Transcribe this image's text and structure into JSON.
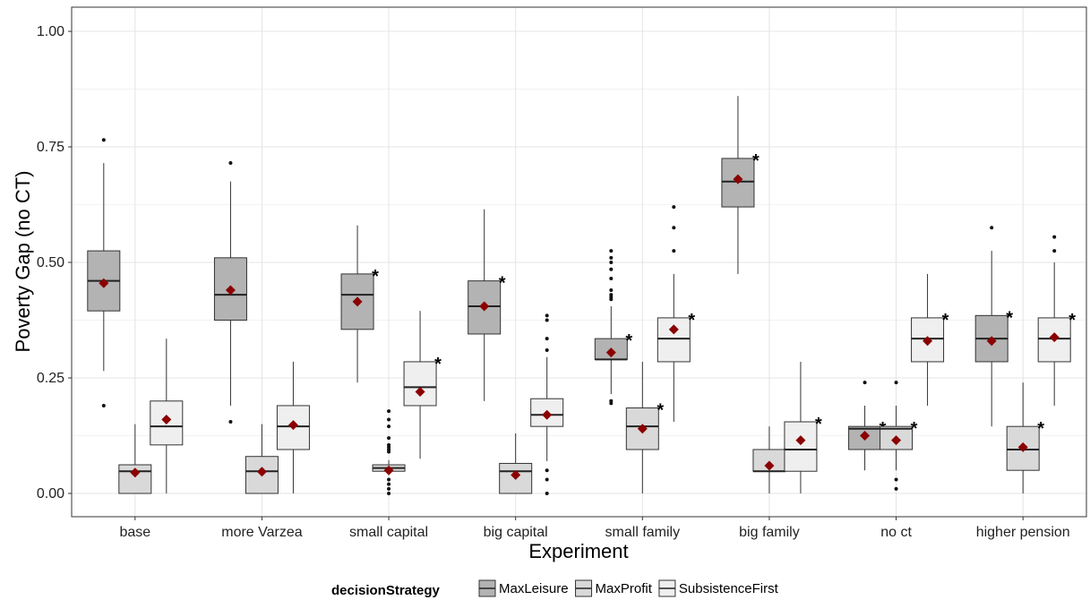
{
  "chart_data": {
    "type": "boxplot",
    "xlabel": "Experiment",
    "ylabel": "Poverty Gap (no CT)",
    "ylim": [
      -0.05,
      1.05
    ],
    "yticks": [
      0.0,
      0.25,
      0.5,
      0.75,
      1.0
    ],
    "ytick_labels": [
      "0.00",
      "0.25",
      "0.50",
      "0.75",
      "1.00"
    ],
    "grid": true,
    "legend": {
      "title": "decisionStrategy",
      "placement": "bottom",
      "entries": [
        {
          "name": "MaxLeisure",
          "color": "#b3b3b3"
        },
        {
          "name": "MaxProfit",
          "color": "#d9d9d9"
        },
        {
          "name": "SubsistenceFirst",
          "color": "#efefef"
        }
      ]
    },
    "mean_marker_color": "#8b0000",
    "significance_marker": "*",
    "categories": [
      "base",
      "more Varzea",
      "small capital",
      "big capital",
      "small family",
      "big family",
      "no ct",
      "higher pension"
    ],
    "series": [
      {
        "name": "MaxLeisure",
        "boxes": [
          {
            "q1": 0.395,
            "median": 0.46,
            "q3": 0.525,
            "whisker_low": 0.265,
            "whisker_high": 0.715,
            "mean": 0.455,
            "outliers": [
              0.765,
              0.19
            ],
            "significant": false
          },
          {
            "q1": 0.375,
            "median": 0.43,
            "q3": 0.51,
            "whisker_low": 0.19,
            "whisker_high": 0.675,
            "mean": 0.44,
            "outliers": [
              0.715,
              0.155
            ],
            "significant": false
          },
          {
            "q1": 0.355,
            "median": 0.43,
            "q3": 0.475,
            "whisker_low": 0.24,
            "whisker_high": 0.58,
            "mean": 0.415,
            "outliers": [],
            "significant": true
          },
          {
            "q1": 0.345,
            "median": 0.405,
            "q3": 0.46,
            "whisker_low": 0.2,
            "whisker_high": 0.615,
            "mean": 0.405,
            "outliers": [],
            "significant": true
          },
          {
            "q1": 0.29,
            "median": 0.29,
            "q3": 0.335,
            "whisker_low": 0.215,
            "whisker_high": 0.405,
            "mean": 0.305,
            "outliers": [
              0.525,
              0.51,
              0.5,
              0.485,
              0.465,
              0.44,
              0.43,
              0.425,
              0.42,
              0.2,
              0.195
            ],
            "significant": true
          },
          {
            "q1": 0.62,
            "median": 0.675,
            "q3": 0.725,
            "whisker_low": 0.475,
            "whisker_high": 0.86,
            "mean": 0.68,
            "outliers": [],
            "significant": true
          },
          {
            "q1": 0.095,
            "median": 0.14,
            "q3": 0.145,
            "whisker_low": 0.05,
            "whisker_high": 0.19,
            "mean": 0.125,
            "outliers": [
              0.24
            ],
            "significant": true
          },
          {
            "q1": 0.285,
            "median": 0.335,
            "q3": 0.385,
            "whisker_low": 0.145,
            "whisker_high": 0.525,
            "mean": 0.33,
            "outliers": [
              0.575
            ],
            "significant": true
          }
        ]
      },
      {
        "name": "MaxProfit",
        "boxes": [
          {
            "q1": 0.0,
            "median": 0.048,
            "q3": 0.062,
            "whisker_low": 0.0,
            "whisker_high": 0.15,
            "mean": 0.045,
            "outliers": [],
            "significant": false
          },
          {
            "q1": 0.0,
            "median": 0.048,
            "q3": 0.08,
            "whisker_low": 0.0,
            "whisker_high": 0.15,
            "mean": 0.047,
            "outliers": [],
            "significant": false
          },
          {
            "q1": 0.048,
            "median": 0.055,
            "q3": 0.062,
            "whisker_low": 0.04,
            "whisker_high": 0.072,
            "mean": 0.05,
            "outliers": [
              0.178,
              0.16,
              0.145,
              0.12,
              0.105,
              0.1,
              0.095,
              0.09,
              0.03,
              0.02,
              0.01,
              0.0
            ],
            "significant": false
          },
          {
            "q1": 0.0,
            "median": 0.048,
            "q3": 0.065,
            "whisker_low": 0.0,
            "whisker_high": 0.13,
            "mean": 0.04,
            "outliers": [],
            "significant": false
          },
          {
            "q1": 0.095,
            "median": 0.145,
            "q3": 0.185,
            "whisker_low": 0.0,
            "whisker_high": 0.285,
            "mean": 0.14,
            "outliers": [],
            "significant": true
          },
          {
            "q1": 0.048,
            "median": 0.048,
            "q3": 0.095,
            "whisker_low": 0.0,
            "whisker_high": 0.145,
            "mean": 0.06,
            "outliers": [],
            "significant": true
          },
          {
            "q1": 0.095,
            "median": 0.14,
            "q3": 0.145,
            "whisker_low": 0.05,
            "whisker_high": 0.19,
            "mean": 0.115,
            "outliers": [
              0.24,
              0.03,
              0.01
            ],
            "significant": true
          },
          {
            "q1": 0.05,
            "median": 0.095,
            "q3": 0.145,
            "whisker_low": 0.0,
            "whisker_high": 0.24,
            "mean": 0.1,
            "outliers": [],
            "significant": true
          }
        ]
      },
      {
        "name": "SubsistenceFirst",
        "boxes": [
          {
            "q1": 0.105,
            "median": 0.145,
            "q3": 0.2,
            "whisker_low": 0.0,
            "whisker_high": 0.335,
            "mean": 0.16,
            "outliers": [],
            "significant": false
          },
          {
            "q1": 0.095,
            "median": 0.145,
            "q3": 0.19,
            "whisker_low": 0.0,
            "whisker_high": 0.285,
            "mean": 0.148,
            "outliers": [],
            "significant": false
          },
          {
            "q1": 0.19,
            "median": 0.23,
            "q3": 0.285,
            "whisker_low": 0.075,
            "whisker_high": 0.395,
            "mean": 0.22,
            "outliers": [],
            "significant": true
          },
          {
            "q1": 0.145,
            "median": 0.17,
            "q3": 0.205,
            "whisker_low": 0.07,
            "whisker_high": 0.295,
            "mean": 0.17,
            "outliers": [
              0.385,
              0.375,
              0.335,
              0.31,
              0.05,
              0.03,
              0.0
            ],
            "significant": false
          },
          {
            "q1": 0.285,
            "median": 0.335,
            "q3": 0.38,
            "whisker_low": 0.155,
            "whisker_high": 0.475,
            "mean": 0.355,
            "outliers": [
              0.62,
              0.575,
              0.525
            ],
            "significant": true
          },
          {
            "q1": 0.048,
            "median": 0.095,
            "q3": 0.155,
            "whisker_low": 0.0,
            "whisker_high": 0.285,
            "mean": 0.115,
            "outliers": [],
            "significant": true
          },
          {
            "q1": 0.285,
            "median": 0.335,
            "q3": 0.38,
            "whisker_low": 0.19,
            "whisker_high": 0.475,
            "mean": 0.33,
            "outliers": [],
            "significant": true
          },
          {
            "q1": 0.285,
            "median": 0.335,
            "q3": 0.38,
            "whisker_low": 0.19,
            "whisker_high": 0.5,
            "mean": 0.338,
            "outliers": [
              0.555,
              0.525
            ],
            "significant": true
          }
        ]
      }
    ]
  }
}
